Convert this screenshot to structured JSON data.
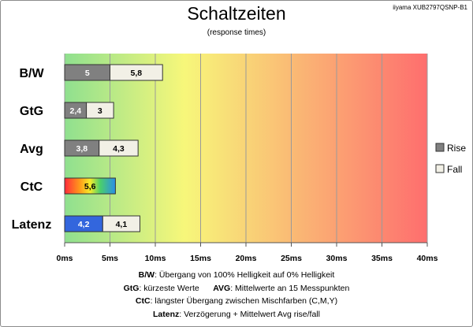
{
  "page": {
    "model": "iiyama XUB2797QSNP-B1"
  },
  "chart_data": {
    "type": "bar",
    "orientation": "horizontal",
    "stacked": true,
    "title": "Schaltzeiten",
    "subtitle": "(response times)",
    "xlim": [
      0,
      40
    ],
    "x_ticks": [
      "0ms",
      "5ms",
      "10ms",
      "15ms",
      "20ms",
      "25ms",
      "30ms",
      "35ms",
      "40ms"
    ],
    "categories": [
      "B/W",
      "GtG",
      "Avg",
      "CtC",
      "Latenz"
    ],
    "series": [
      {
        "name": "Rise",
        "color": "#808080",
        "values": [
          5,
          2.4,
          3.8,
          5.6,
          4.2
        ],
        "labels": [
          "5",
          "2,4",
          "3,8",
          "5,6",
          "4,2"
        ]
      },
      {
        "name": "Fall",
        "color": "#f2f0e6",
        "values": [
          5.8,
          3,
          4.3,
          null,
          4.1
        ],
        "labels": [
          "5,8",
          "3",
          "4,3",
          "",
          "4,1"
        ]
      }
    ],
    "special_fills": {
      "CtC": "rainbow",
      "Latenz": "#3366dd"
    },
    "background_gradient": [
      "#8fe08f",
      "#f7f77a",
      "#fe6e6e"
    ],
    "grid": true,
    "legend_position": "right"
  },
  "notes": [
    {
      "items": [
        {
          "key": "B/W",
          "text": ":  Übergang von 100% Helligkeit auf 0% Helligkeit"
        }
      ]
    },
    {
      "items": [
        {
          "key": "GtG",
          "text": ": kürzeste  Werte"
        },
        {
          "key": "AVG",
          "text": ": Mittelwerte  an 15 Messpunkten"
        }
      ]
    },
    {
      "items": [
        {
          "key": "CtC",
          "text": ": längster Übergang  zwischen Mischfarben  (C,M,Y)"
        }
      ]
    },
    {
      "items": [
        {
          "key": "Latenz",
          "text": ": Verzögerung  + Mittelwert  Avg rise/fall"
        }
      ]
    }
  ]
}
